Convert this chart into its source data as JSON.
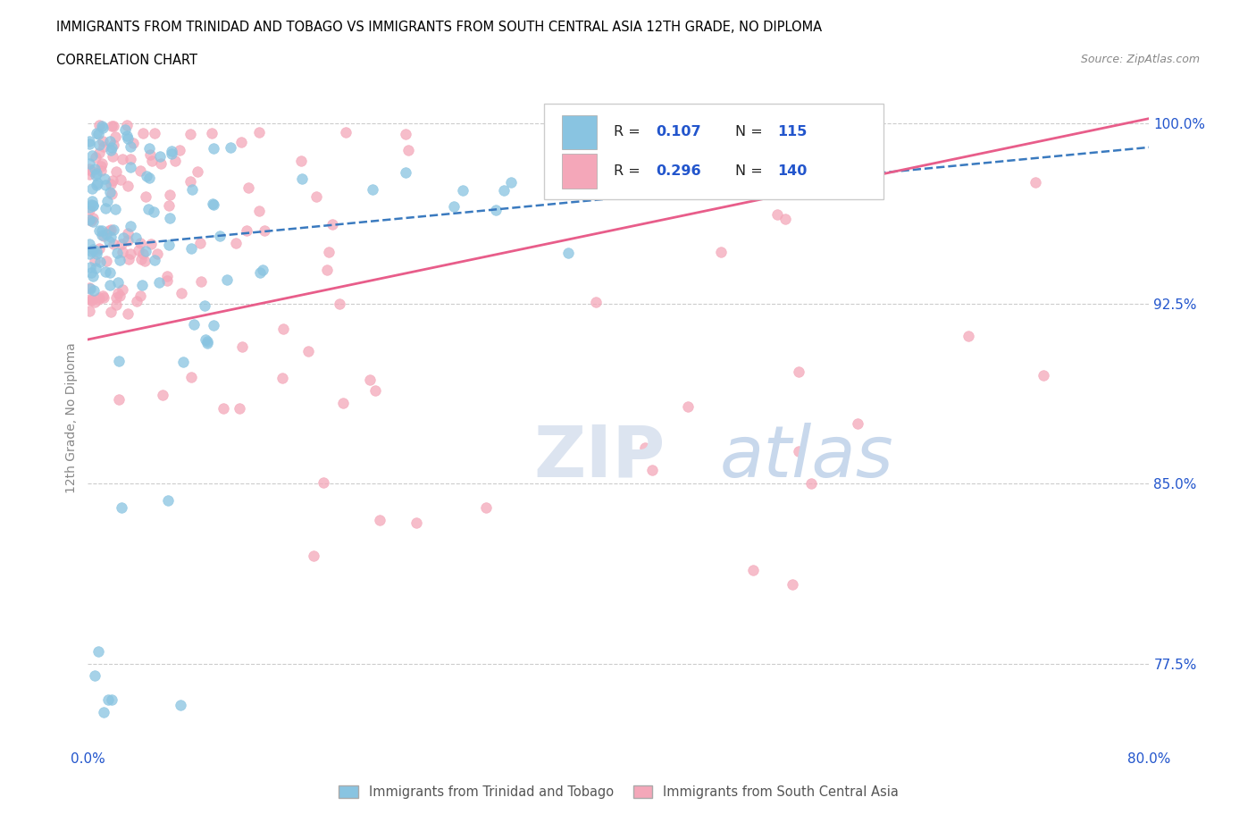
{
  "title_line1": "IMMIGRANTS FROM TRINIDAD AND TOBAGO VS IMMIGRANTS FROM SOUTH CENTRAL ASIA 12TH GRADE, NO DIPLOMA",
  "title_line2": "CORRELATION CHART",
  "source_text": "Source: ZipAtlas.com",
  "ylabel": "12th Grade, No Diploma",
  "x_min": 0.0,
  "x_max": 0.8,
  "y_min": 0.74,
  "y_max": 1.015,
  "y_ticks": [
    0.775,
    0.85,
    0.925,
    1.0
  ],
  "y_tick_labels": [
    "77.5%",
    "85.0%",
    "92.5%",
    "100.0%"
  ],
  "color_blue": "#89c4e1",
  "color_pink": "#f4a7b9",
  "color_blue_dark": "#3a7abf",
  "color_pink_dark": "#e85d8a",
  "color_text_blue": "#2255cc",
  "tt_trend": [
    0.948,
    0.99
  ],
  "sca_trend": [
    0.91,
    1.002
  ]
}
